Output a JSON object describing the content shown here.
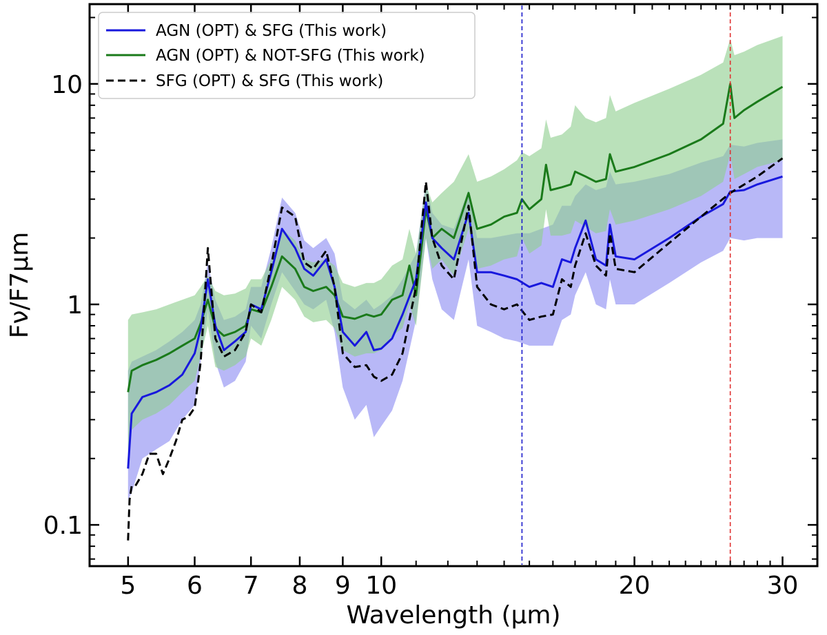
{
  "chart_data": {
    "type": "line",
    "xscale": "log",
    "yscale": "log",
    "xlabel": "Wavelength (μm)",
    "ylabel": "Fν/F7μm",
    "xlim": [
      4.5,
      33
    ],
    "ylim": [
      0.065,
      23
    ],
    "xticks": [
      5,
      6,
      7,
      8,
      9,
      10,
      20,
      30
    ],
    "xtick_labels": [
      "5",
      "6",
      "7",
      "8",
      "9",
      "10",
      "20",
      "30"
    ],
    "yticks": [
      0.1,
      1,
      10
    ],
    "ytick_labels": [
      "0.1",
      "1",
      "10"
    ],
    "vlines": [
      {
        "x": 14.7,
        "color": "#1a1acc",
        "style": "dashed"
      },
      {
        "x": 26.0,
        "color": "#e03030",
        "style": "dashed"
      }
    ],
    "legend_position": "upper-left",
    "series": [
      {
        "name": "AGN (OPT) & SFG (This work)",
        "color": "#1818dd",
        "style": "solid",
        "band_color": "#8c8cf2",
        "x": [
          5.0,
          5.05,
          5.2,
          5.4,
          5.6,
          5.8,
          6.0,
          6.1,
          6.22,
          6.35,
          6.5,
          6.7,
          6.9,
          7.0,
          7.2,
          7.4,
          7.62,
          7.9,
          8.1,
          8.3,
          8.6,
          8.8,
          9.0,
          9.3,
          9.6,
          9.8,
          10.0,
          10.3,
          10.6,
          11.0,
          11.3,
          11.5,
          11.8,
          12.2,
          12.7,
          13.0,
          13.5,
          14.0,
          14.5,
          15.0,
          15.5,
          16.0,
          16.4,
          16.8,
          17.0,
          17.5,
          18.0,
          18.5,
          18.7,
          19.0,
          20.0,
          22.0,
          24.0,
          25.5,
          26.0,
          27.0,
          28.0,
          30.0
        ],
        "mean": [
          0.18,
          0.32,
          0.38,
          0.4,
          0.43,
          0.48,
          0.6,
          0.78,
          1.3,
          0.8,
          0.62,
          0.68,
          0.75,
          1.0,
          0.95,
          1.4,
          2.2,
          1.8,
          1.45,
          1.35,
          1.6,
          1.2,
          0.75,
          0.65,
          0.75,
          0.62,
          0.63,
          0.7,
          0.9,
          1.3,
          2.9,
          2.0,
          1.8,
          1.6,
          2.6,
          1.4,
          1.4,
          1.35,
          1.3,
          1.2,
          1.25,
          1.2,
          1.6,
          1.55,
          1.8,
          2.4,
          1.6,
          1.5,
          2.3,
          1.65,
          1.6,
          2.0,
          2.5,
          2.85,
          3.25,
          3.3,
          3.5,
          3.8
        ],
        "upper": [
          0.5,
          0.55,
          0.58,
          0.62,
          0.68,
          0.75,
          0.85,
          1.0,
          1.55,
          1.05,
          0.85,
          0.88,
          0.95,
          1.2,
          1.2,
          1.8,
          3.05,
          2.6,
          1.95,
          1.8,
          2.0,
          1.7,
          1.05,
          0.95,
          1.05,
          0.95,
          1.0,
          1.1,
          1.3,
          1.7,
          3.6,
          2.6,
          2.3,
          2.2,
          3.3,
          2.0,
          2.0,
          2.05,
          2.1,
          2.1,
          2.2,
          2.3,
          2.8,
          2.8,
          3.1,
          3.5,
          3.3,
          3.4,
          4.0,
          3.5,
          3.6,
          3.9,
          4.4,
          4.7,
          5.3,
          5.2,
          5.4,
          5.6
        ],
        "lower": [
          0.13,
          0.14,
          0.2,
          0.22,
          0.24,
          0.3,
          0.35,
          0.55,
          0.95,
          0.55,
          0.42,
          0.45,
          0.55,
          0.8,
          0.7,
          1.0,
          1.4,
          1.15,
          1.0,
          0.95,
          1.05,
          0.75,
          0.42,
          0.3,
          0.35,
          0.25,
          0.28,
          0.33,
          0.45,
          0.85,
          2.0,
          1.3,
          0.95,
          0.85,
          1.6,
          0.8,
          0.75,
          0.7,
          0.68,
          0.65,
          0.65,
          0.65,
          0.85,
          0.9,
          1.1,
          1.4,
          1.0,
          0.95,
          1.3,
          1.0,
          1.0,
          1.25,
          1.55,
          1.75,
          2.0,
          1.95,
          2.0,
          2.0
        ]
      },
      {
        "name": "AGN (OPT) & NOT-SFG (This work)",
        "color": "#1a7a1a",
        "style": "solid",
        "band_color": "#8fcf8f",
        "x": [
          5.0,
          5.05,
          5.2,
          5.4,
          5.6,
          5.8,
          6.0,
          6.1,
          6.22,
          6.35,
          6.5,
          6.7,
          6.9,
          7.0,
          7.2,
          7.4,
          7.62,
          7.9,
          8.1,
          8.3,
          8.6,
          8.8,
          9.0,
          9.3,
          9.6,
          9.8,
          10.0,
          10.3,
          10.6,
          10.8,
          11.0,
          11.3,
          11.5,
          11.8,
          12.2,
          12.7,
          13.0,
          13.5,
          14.0,
          14.5,
          14.7,
          15.0,
          15.5,
          15.7,
          15.9,
          16.4,
          16.8,
          17.0,
          17.5,
          18.0,
          18.5,
          18.7,
          19.0,
          20.0,
          22.0,
          24.0,
          25.5,
          26.0,
          26.3,
          27.0,
          28.0,
          30.0
        ],
        "mean": [
          0.4,
          0.5,
          0.53,
          0.56,
          0.6,
          0.65,
          0.7,
          0.82,
          1.05,
          0.78,
          0.72,
          0.75,
          0.8,
          0.95,
          0.92,
          1.2,
          1.65,
          1.45,
          1.2,
          1.15,
          1.2,
          1.1,
          0.88,
          0.86,
          0.9,
          0.88,
          0.9,
          1.05,
          1.1,
          1.5,
          1.1,
          2.7,
          2.0,
          2.2,
          2.0,
          3.2,
          2.2,
          2.3,
          2.5,
          2.6,
          3.0,
          2.7,
          3.0,
          4.3,
          3.3,
          3.4,
          3.5,
          4.0,
          3.8,
          3.6,
          3.7,
          4.8,
          4.0,
          4.2,
          4.8,
          5.6,
          6.6,
          10.0,
          7.0,
          7.6,
          8.3,
          9.7
        ],
        "upper": [
          0.85,
          0.9,
          0.92,
          0.95,
          1.0,
          1.05,
          1.1,
          1.2,
          1.35,
          1.15,
          1.1,
          1.12,
          1.18,
          1.3,
          1.3,
          1.6,
          2.2,
          1.95,
          1.6,
          1.55,
          1.6,
          1.5,
          1.25,
          1.2,
          1.25,
          1.25,
          1.3,
          1.5,
          1.6,
          2.2,
          1.7,
          3.5,
          2.9,
          3.2,
          3.6,
          4.8,
          3.6,
          3.8,
          4.1,
          4.5,
          4.9,
          4.7,
          5.1,
          6.9,
          5.7,
          5.9,
          6.4,
          8.0,
          7.0,
          6.7,
          7.0,
          8.9,
          7.5,
          8.2,
          9.5,
          11.0,
          12.5,
          16.0,
          13.5,
          14.0,
          15.0,
          16.5
        ],
        "lower": [
          0.2,
          0.27,
          0.3,
          0.32,
          0.35,
          0.4,
          0.45,
          0.58,
          0.8,
          0.52,
          0.5,
          0.53,
          0.58,
          0.7,
          0.65,
          0.85,
          1.2,
          1.05,
          0.88,
          0.83,
          0.85,
          0.78,
          0.62,
          0.58,
          0.6,
          0.6,
          0.62,
          0.72,
          0.78,
          1.0,
          0.8,
          2.0,
          1.45,
          1.6,
          1.35,
          2.2,
          1.45,
          1.5,
          1.6,
          1.65,
          2.0,
          1.7,
          1.85,
          2.7,
          2.05,
          2.05,
          2.1,
          2.4,
          2.25,
          2.1,
          2.15,
          2.7,
          2.3,
          2.4,
          2.7,
          3.1,
          3.6,
          4.8,
          3.7,
          3.9,
          4.2,
          4.5
        ]
      },
      {
        "name": "SFG (OPT) & SFG (This work)",
        "color": "#000000",
        "style": "dashed",
        "x": [
          5.0,
          5.02,
          5.05,
          5.1,
          5.2,
          5.3,
          5.4,
          5.5,
          5.6,
          5.7,
          5.8,
          5.9,
          6.0,
          6.1,
          6.22,
          6.35,
          6.5,
          6.7,
          6.9,
          7.0,
          7.2,
          7.4,
          7.62,
          7.9,
          8.1,
          8.3,
          8.6,
          8.8,
          9.0,
          9.3,
          9.6,
          9.8,
          10.0,
          10.3,
          10.6,
          11.0,
          11.3,
          11.5,
          11.8,
          12.2,
          12.7,
          13.0,
          13.5,
          14.0,
          14.5,
          15.0,
          15.5,
          16.0,
          16.4,
          16.8,
          17.0,
          17.5,
          18.0,
          18.5,
          18.7,
          19.0,
          20.0,
          22.0,
          24.0,
          26.0,
          28.0,
          30.0
        ],
        "values": [
          0.085,
          0.13,
          0.15,
          0.15,
          0.17,
          0.21,
          0.21,
          0.17,
          0.2,
          0.24,
          0.3,
          0.31,
          0.34,
          0.55,
          1.8,
          0.7,
          0.58,
          0.62,
          0.75,
          1.0,
          0.92,
          1.5,
          2.75,
          2.5,
          1.55,
          1.45,
          1.75,
          1.2,
          0.6,
          0.52,
          0.53,
          0.47,
          0.45,
          0.48,
          0.6,
          1.2,
          3.6,
          2.0,
          1.5,
          1.3,
          2.8,
          1.2,
          1.0,
          0.95,
          1.0,
          0.85,
          0.88,
          0.9,
          1.3,
          1.2,
          1.5,
          2.1,
          1.5,
          1.35,
          2.1,
          1.45,
          1.4,
          1.9,
          2.5,
          3.2,
          3.8,
          4.6
        ]
      }
    ]
  }
}
